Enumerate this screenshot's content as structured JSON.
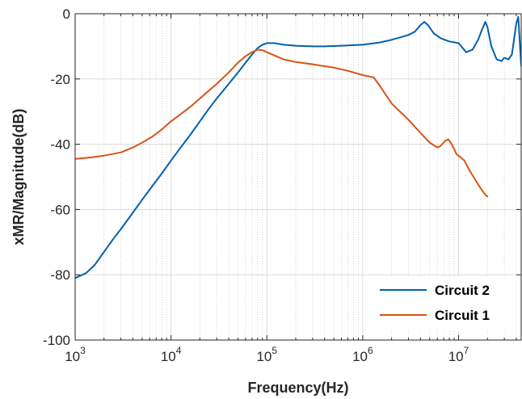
{
  "chart_data": {
    "type": "line",
    "title": "",
    "xlabel": "Frequency(Hz)",
    "ylabel": "xMR/Magnitude(dB)",
    "xscale": "log",
    "xlim": [
      1000,
      45000000
    ],
    "ylim": [
      -100,
      0
    ],
    "xticks": [
      1000,
      10000,
      100000,
      1000000,
      10000000
    ],
    "xtick_labels": [
      {
        "base": "10",
        "exp": "3"
      },
      {
        "base": "10",
        "exp": "4"
      },
      {
        "base": "10",
        "exp": "5"
      },
      {
        "base": "10",
        "exp": "6"
      },
      {
        "base": "10",
        "exp": "7"
      }
    ],
    "yticks": [
      -100,
      -80,
      -60,
      -40,
      -20,
      0
    ],
    "ytick_labels": [
      "-100",
      "-80",
      "-60",
      "-40",
      "-20",
      "0"
    ],
    "grid": true,
    "legend_position": "bottom-right",
    "series": [
      {
        "name": "Circuit 2",
        "color": "#0060ad",
        "x": [
          1000,
          1300,
          1600,
          2000,
          2500,
          3000,
          4000,
          5000,
          6500,
          8000,
          10000,
          13000,
          16000,
          20000,
          25000,
          30000,
          40000,
          50000,
          60000,
          70000,
          80000,
          90000,
          100000,
          120000,
          150000,
          200000,
          300000,
          400000,
          600000,
          1000000,
          1500000,
          2000000,
          3000000,
          3500000,
          4000000,
          4400000,
          4800000,
          5500000,
          6500000,
          8000000,
          10000000,
          12000000,
          14000000,
          16000000,
          17500000,
          19000000,
          20000000,
          22000000,
          25000000,
          28000000,
          30000000,
          33000000,
          36000000,
          40000000,
          42000000,
          45000000
        ],
        "y": [
          -81,
          -79.5,
          -77,
          -73,
          -69,
          -66,
          -61,
          -57,
          -52.5,
          -49,
          -45,
          -40.5,
          -37,
          -33,
          -29,
          -26,
          -21.5,
          -18,
          -15,
          -12.5,
          -10.5,
          -9.5,
          -9,
          -9,
          -9.5,
          -9.8,
          -10,
          -10,
          -9.8,
          -9.5,
          -8.8,
          -8,
          -6.5,
          -5.5,
          -3.5,
          -2.5,
          -3.5,
          -6,
          -7.5,
          -8.5,
          -9,
          -11.8,
          -11,
          -8,
          -5,
          -2.5,
          -4,
          -10,
          -14,
          -14.5,
          -13.5,
          -14,
          -12.5,
          -3,
          -1,
          -16
        ]
      },
      {
        "name": "Circuit 1",
        "color": "#d95319",
        "x": [
          1000,
          1500,
          2000,
          3000,
          4000,
          5000,
          6500,
          8000,
          10000,
          13000,
          16000,
          20000,
          25000,
          30000,
          40000,
          50000,
          60000,
          70000,
          80000,
          90000,
          100000,
          120000,
          150000,
          200000,
          300000,
          500000,
          700000,
          1000000,
          1300000,
          1500000,
          2000000,
          3000000,
          4000000,
          5000000,
          6000000,
          6500000,
          7200000,
          7800000,
          8500000,
          9500000,
          10500000,
          11500000,
          13000000,
          15000000,
          17000000,
          19000000,
          20000000
        ],
        "y": [
          -44.5,
          -44,
          -43.5,
          -42.5,
          -41,
          -39.5,
          -37.5,
          -35.5,
          -33,
          -30.5,
          -28.5,
          -26,
          -23.5,
          -21.5,
          -18,
          -15,
          -13,
          -11.8,
          -11,
          -11.2,
          -11.8,
          -12.8,
          -14,
          -14.8,
          -15.5,
          -16.5,
          -17.5,
          -18.8,
          -19.5,
          -22,
          -27.5,
          -32.5,
          -36.5,
          -39.5,
          -41,
          -40.5,
          -39,
          -38.5,
          -40,
          -43,
          -44,
          -45,
          -48,
          -51,
          -53.5,
          -55.5,
          -56
        ]
      }
    ]
  }
}
